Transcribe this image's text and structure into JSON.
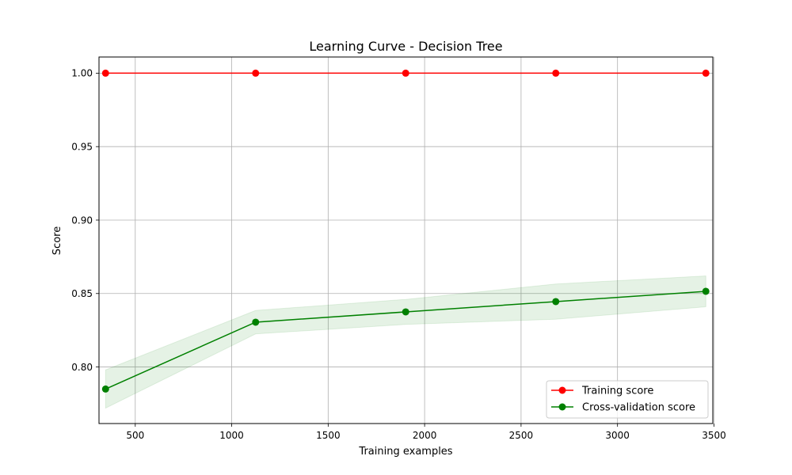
{
  "chart_data": {
    "type": "line",
    "title": "Learning Curve - Decision Tree",
    "xlabel": "Training examples",
    "ylabel": "Score",
    "xlim": [
      312,
      3494
    ],
    "ylim": [
      0.7615,
      1.011
    ],
    "x_ticks": [
      500,
      1000,
      1500,
      2000,
      2500,
      3000,
      3500
    ],
    "x_tick_labels": [
      "500",
      "1000",
      "1500",
      "2000",
      "2500",
      "3000",
      "3500"
    ],
    "y_ticks": [
      0.8,
      0.85,
      0.9,
      0.95,
      1.0
    ],
    "y_tick_labels": [
      "0.80",
      "0.85",
      "0.90",
      "0.95",
      "1.00"
    ],
    "grid": true,
    "legend_position": "lower-right",
    "x": [
      346,
      1124,
      1902,
      2680,
      3458
    ],
    "series": [
      {
        "name": "Training score",
        "color": "#ff0000",
        "values": [
          1.0,
          1.0,
          1.0,
          1.0,
          1.0
        ],
        "band_upper": [
          1.0,
          1.0,
          1.0,
          1.0,
          1.0
        ],
        "band_lower": [
          1.0,
          1.0,
          1.0,
          1.0,
          1.0
        ]
      },
      {
        "name": "Cross-validation score",
        "color": "#008000",
        "values": [
          0.785,
          0.8305,
          0.8375,
          0.8445,
          0.8515
        ],
        "band_upper": [
          0.798,
          0.8385,
          0.846,
          0.8565,
          0.862
        ],
        "band_lower": [
          0.772,
          0.8225,
          0.829,
          0.8325,
          0.841
        ]
      }
    ]
  }
}
